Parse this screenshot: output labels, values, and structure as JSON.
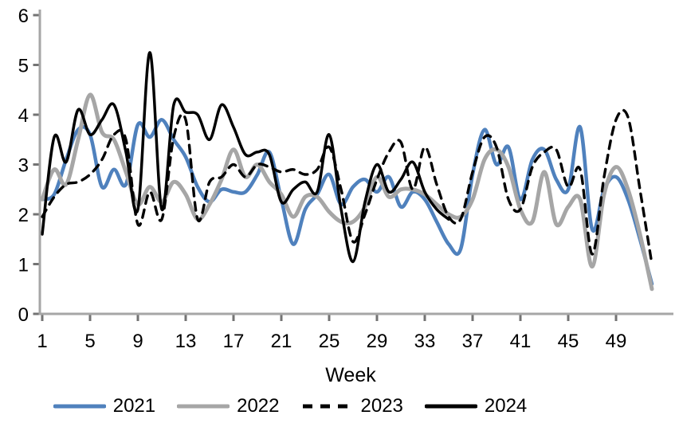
{
  "chart_data": {
    "type": "line",
    "title": "",
    "xlabel": "Week",
    "ylabel": "",
    "xlim": [
      1,
      53
    ],
    "ylim": [
      0,
      6
    ],
    "x_ticks": [
      1,
      5,
      9,
      13,
      17,
      21,
      25,
      29,
      33,
      37,
      41,
      45,
      49
    ],
    "y_ticks": [
      0,
      1,
      2,
      3,
      4,
      5,
      6
    ],
    "grid": false,
    "legend_position": "bottom",
    "smoothing": "spline",
    "x_is_week_number": true,
    "series": [
      {
        "name": "2021",
        "color": "#4f81bd",
        "style": "solid",
        "width": 4.5,
        "start_week": 1,
        "values": [
          2.3,
          2.4,
          3.1,
          3.7,
          3.6,
          2.55,
          2.9,
          2.6,
          3.8,
          3.55,
          3.9,
          3.5,
          3.15,
          2.55,
          2.25,
          2.5,
          2.45,
          2.45,
          2.8,
          3.25,
          2.3,
          1.4,
          2.1,
          2.4,
          2.8,
          2.2,
          2.55,
          2.7,
          2.45,
          2.75,
          2.15,
          2.45,
          2.3,
          1.85,
          1.4,
          1.3,
          2.8,
          3.7,
          3.0,
          3.35,
          2.3,
          3.1,
          3.3,
          2.7,
          2.5,
          3.75,
          1.7,
          2.5,
          2.75,
          2.3,
          1.5,
          0.6
        ]
      },
      {
        "name": "2022",
        "color": "#a6a6a6",
        "style": "solid",
        "width": 5,
        "start_week": 1,
        "values": [
          2.3,
          2.9,
          2.6,
          3.5,
          4.4,
          3.65,
          3.5,
          2.85,
          2.2,
          2.55,
          2.25,
          2.65,
          2.4,
          1.9,
          2.2,
          2.7,
          3.3,
          2.75,
          3.0,
          2.65,
          2.4,
          1.95,
          2.35,
          2.35,
          2.05,
          1.85,
          1.85,
          2.15,
          2.75,
          2.35,
          2.5,
          2.5,
          2.4,
          2.2,
          2.0,
          1.95,
          2.3,
          3.1,
          3.3,
          2.95,
          2.1,
          1.85,
          2.85,
          1.8,
          2.15,
          2.3,
          0.95,
          2.4,
          2.95,
          2.5,
          1.6,
          0.5
        ]
      },
      {
        "name": "2023",
        "color": "#000000",
        "style": "dashed",
        "width": 3.4,
        "start_week": 1,
        "values": [
          1.95,
          2.35,
          2.6,
          2.65,
          2.8,
          3.1,
          3.6,
          3.5,
          1.8,
          2.45,
          1.9,
          3.55,
          3.9,
          1.9,
          2.65,
          2.75,
          3.0,
          2.75,
          3.0,
          2.95,
          2.85,
          2.9,
          2.8,
          2.9,
          3.35,
          2.5,
          1.45,
          2.0,
          2.7,
          3.25,
          3.45,
          2.5,
          3.35,
          2.6,
          1.95,
          1.9,
          2.85,
          3.55,
          3.35,
          2.3,
          2.1,
          2.95,
          3.25,
          3.3,
          2.55,
          2.9,
          1.2,
          2.75,
          3.9,
          3.95,
          2.5,
          1.0
        ]
      },
      {
        "name": "2024",
        "color": "#000000",
        "style": "solid",
        "width": 3.5,
        "start_week": 1,
        "values": [
          1.6,
          3.55,
          3.05,
          4.1,
          3.6,
          3.9,
          4.2,
          3.25,
          2.1,
          5.25,
          2.1,
          4.2,
          4.05,
          4.0,
          3.5,
          4.2,
          3.75,
          3.2,
          3.25,
          3.2,
          2.25,
          2.5,
          2.65,
          2.45,
          3.6,
          2.1,
          1.05,
          2.25,
          3.0,
          2.45,
          2.7,
          3.05,
          2.45,
          2.1,
          1.9
        ]
      }
    ]
  },
  "axis": {
    "line_color": "#a6a6a6",
    "tick_color": "#737373",
    "label_color": "#000000"
  }
}
